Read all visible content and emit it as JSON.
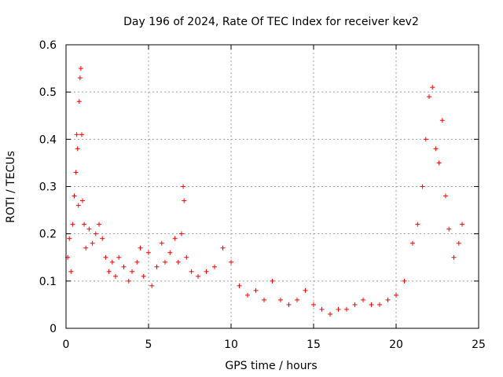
{
  "chart_data": {
    "type": "scatter",
    "title": "Day 196 of 2024, Rate Of TEC Index for receiver kev2",
    "xlabel": "GPS time / hours",
    "ylabel": "ROTI / TECUs",
    "xlim": [
      0,
      25
    ],
    "ylim": [
      0,
      0.6
    ],
    "xticks": [
      0,
      5,
      10,
      15,
      20,
      25
    ],
    "yticks": [
      0,
      0.1,
      0.2,
      0.3,
      0.4,
      0.5,
      0.6
    ],
    "grid": true,
    "marker": "+",
    "marker_color": "#ff0000",
    "series": [
      {
        "values": [
          [
            0.1,
            0.15
          ],
          [
            0.2,
            0.19
          ],
          [
            0.3,
            0.12
          ],
          [
            0.4,
            0.22
          ],
          [
            0.5,
            0.28
          ],
          [
            0.6,
            0.33
          ],
          [
            0.65,
            0.41
          ],
          [
            0.7,
            0.38
          ],
          [
            0.75,
            0.26
          ],
          [
            0.8,
            0.48
          ],
          [
            0.85,
            0.53
          ],
          [
            0.9,
            0.55
          ],
          [
            0.95,
            0.41
          ],
          [
            1.0,
            0.27
          ],
          [
            1.1,
            0.22
          ],
          [
            1.2,
            0.17
          ],
          [
            1.4,
            0.21
          ],
          [
            1.6,
            0.18
          ],
          [
            1.8,
            0.2
          ],
          [
            2.0,
            0.22
          ],
          [
            2.2,
            0.19
          ],
          [
            2.4,
            0.15
          ],
          [
            2.6,
            0.12
          ],
          [
            2.8,
            0.14
          ],
          [
            3.0,
            0.11
          ],
          [
            3.2,
            0.15
          ],
          [
            3.5,
            0.13
          ],
          [
            3.8,
            0.1
          ],
          [
            4.0,
            0.12
          ],
          [
            4.3,
            0.14
          ],
          [
            4.5,
            0.17
          ],
          [
            4.7,
            0.11
          ],
          [
            5.0,
            0.16
          ],
          [
            5.2,
            0.09
          ],
          [
            5.5,
            0.13
          ],
          [
            5.8,
            0.18
          ],
          [
            6.0,
            0.14
          ],
          [
            6.3,
            0.16
          ],
          [
            6.6,
            0.19
          ],
          [
            6.8,
            0.14
          ],
          [
            7.0,
            0.2
          ],
          [
            7.1,
            0.3
          ],
          [
            7.15,
            0.27
          ],
          [
            7.3,
            0.15
          ],
          [
            7.6,
            0.12
          ],
          [
            8.0,
            0.11
          ],
          [
            8.5,
            0.12
          ],
          [
            9.0,
            0.13
          ],
          [
            9.5,
            0.17
          ],
          [
            10.0,
            0.14
          ],
          [
            10.5,
            0.09
          ],
          [
            11.0,
            0.07
          ],
          [
            11.5,
            0.08
          ],
          [
            12.0,
            0.06
          ],
          [
            12.5,
            0.1
          ],
          [
            13.0,
            0.06
          ],
          [
            13.5,
            0.05
          ],
          [
            14.0,
            0.06
          ],
          [
            14.5,
            0.08
          ],
          [
            15.0,
            0.05
          ],
          [
            15.5,
            0.04
          ],
          [
            16.0,
            0.03
          ],
          [
            16.5,
            0.04
          ],
          [
            17.0,
            0.04
          ],
          [
            17.5,
            0.05
          ],
          [
            18.0,
            0.06
          ],
          [
            18.5,
            0.05
          ],
          [
            19.0,
            0.05
          ],
          [
            19.5,
            0.06
          ],
          [
            20.0,
            0.07
          ],
          [
            20.5,
            0.1
          ],
          [
            21.0,
            0.18
          ],
          [
            21.3,
            0.22
          ],
          [
            21.6,
            0.3
          ],
          [
            21.8,
            0.4
          ],
          [
            22.0,
            0.49
          ],
          [
            22.2,
            0.51
          ],
          [
            22.4,
            0.38
          ],
          [
            22.6,
            0.35
          ],
          [
            22.8,
            0.44
          ],
          [
            23.0,
            0.28
          ],
          [
            23.2,
            0.21
          ],
          [
            23.5,
            0.15
          ],
          [
            23.8,
            0.18
          ],
          [
            24.0,
            0.22
          ]
        ]
      }
    ]
  }
}
